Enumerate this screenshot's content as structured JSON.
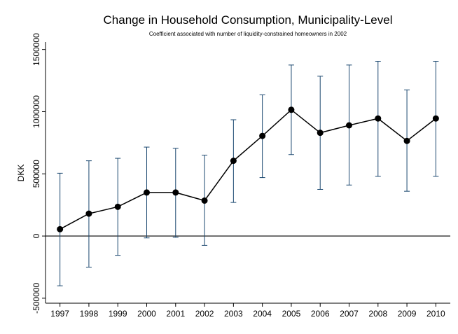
{
  "chart_data": {
    "type": "line",
    "title": "Change in Household Consumption, Municipality-Level",
    "subtitle": "Coefficient associated with number of liquidity-constrained homeowners in 2002",
    "y_label": "DKK",
    "x": [
      1997,
      1998,
      1999,
      2000,
      2001,
      2002,
      2003,
      2004,
      2005,
      2006,
      2007,
      2008,
      2009,
      2010
    ],
    "series": [
      {
        "color": "#000000",
        "error_color": "#1a476f",
        "values": [
          55000,
          180000,
          235000,
          350000,
          350000,
          285000,
          605000,
          805000,
          1015000,
          830000,
          890000,
          945000,
          765000,
          945000
        ],
        "lower": [
          -400000,
          -250000,
          -155000,
          -15000,
          -10000,
          -75000,
          270000,
          470000,
          655000,
          375000,
          410000,
          480000,
          360000,
          480000
        ],
        "upper": [
          505000,
          605000,
          625000,
          715000,
          705000,
          650000,
          935000,
          1135000,
          1375000,
          1285000,
          1375000,
          1405000,
          1175000,
          1405000
        ]
      }
    ],
    "xlim": [
      1996.5,
      2010.5
    ],
    "xticks": [
      1997,
      1998,
      1999,
      2000,
      2001,
      2002,
      2003,
      2004,
      2005,
      2006,
      2007,
      2008,
      2009,
      2010
    ],
    "ylim": [
      -540000,
      1560000
    ],
    "yticks": [
      -500000,
      0,
      500000,
      1000000,
      1500000
    ],
    "yline": 0
  }
}
